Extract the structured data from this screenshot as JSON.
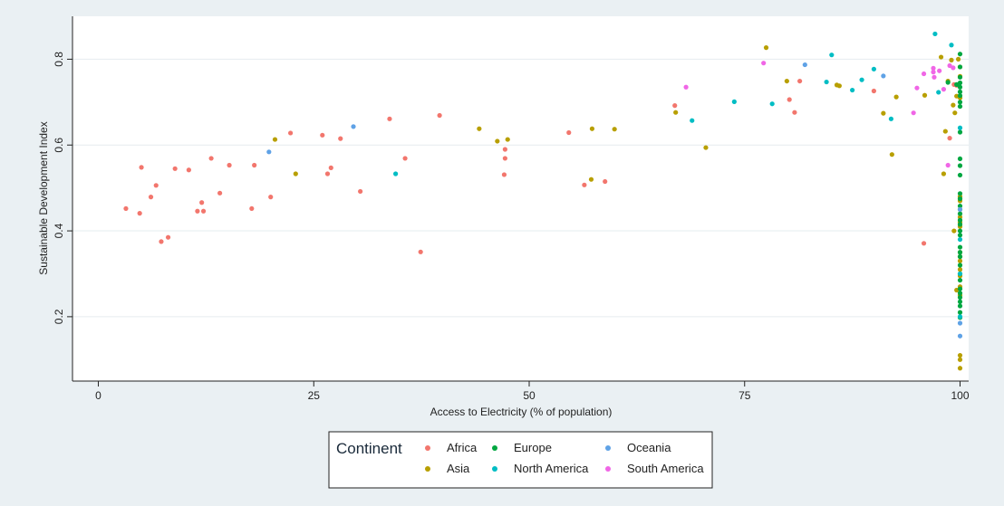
{
  "chart_data": {
    "type": "scatter",
    "xlabel": "Access to Electricity (% of population)",
    "ylabel": "Sustainable Development Index",
    "xlim": [
      -3,
      101
    ],
    "ylim": [
      0.05,
      0.9
    ],
    "xticks": [
      "0",
      "25",
      "50",
      "75",
      "100"
    ],
    "xtick_values": [
      0,
      25,
      50,
      75,
      100
    ],
    "yticks": [
      "0.2",
      "0.4",
      "0.6",
      "0.8"
    ],
    "ytick_values": [
      0.2,
      0.4,
      0.6,
      0.8
    ],
    "grid": true,
    "legend": {
      "title": "Continent",
      "placement": "bottom"
    },
    "series": [
      {
        "name": "Africa",
        "color": "#f2766d",
        "points": [
          [
            3.2,
            0.452
          ],
          [
            4.8,
            0.441
          ],
          [
            5.0,
            0.548
          ],
          [
            6.1,
            0.479
          ],
          [
            6.7,
            0.506
          ],
          [
            7.3,
            0.375
          ],
          [
            8.1,
            0.385
          ],
          [
            8.9,
            0.545
          ],
          [
            10.5,
            0.542
          ],
          [
            11.5,
            0.446
          ],
          [
            12.0,
            0.466
          ],
          [
            12.2,
            0.446
          ],
          [
            13.1,
            0.569
          ],
          [
            14.1,
            0.488
          ],
          [
            15.2,
            0.553
          ],
          [
            17.8,
            0.452
          ],
          [
            18.1,
            0.553
          ],
          [
            20.0,
            0.479
          ],
          [
            22.3,
            0.628
          ],
          [
            26.0,
            0.623
          ],
          [
            26.6,
            0.533
          ],
          [
            27.0,
            0.547
          ],
          [
            28.1,
            0.615
          ],
          [
            30.4,
            0.492
          ],
          [
            33.8,
            0.661
          ],
          [
            35.6,
            0.569
          ],
          [
            37.4,
            0.351
          ],
          [
            39.6,
            0.669
          ],
          [
            47.2,
            0.59
          ],
          [
            47.2,
            0.569
          ],
          [
            47.1,
            0.531
          ],
          [
            54.6,
            0.629
          ],
          [
            56.4,
            0.507
          ],
          [
            58.8,
            0.515
          ],
          [
            66.9,
            0.692
          ],
          [
            80.2,
            0.706
          ],
          [
            80.8,
            0.676
          ],
          [
            81.4,
            0.749
          ],
          [
            90.0,
            0.726
          ],
          [
            95.8,
            0.371
          ],
          [
            98.8,
            0.616
          ],
          [
            99.3,
            0.741
          ],
          [
            99.6,
            0.739
          ]
        ]
      },
      {
        "name": "Asia",
        "color": "#b89f00",
        "points": [
          [
            20.5,
            0.613
          ],
          [
            22.9,
            0.533
          ],
          [
            44.2,
            0.638
          ],
          [
            46.3,
            0.609
          ],
          [
            47.5,
            0.613
          ],
          [
            57.2,
            0.52
          ],
          [
            57.3,
            0.638
          ],
          [
            59.9,
            0.637
          ],
          [
            67.0,
            0.676
          ],
          [
            70.5,
            0.594
          ],
          [
            77.5,
            0.827
          ],
          [
            79.9,
            0.749
          ],
          [
            86.0,
            0.738
          ],
          [
            85.7,
            0.74
          ],
          [
            91.1,
            0.674
          ],
          [
            92.1,
            0.578
          ],
          [
            92.6,
            0.712
          ],
          [
            95.9,
            0.716
          ],
          [
            97.8,
            0.805
          ],
          [
            98.1,
            0.533
          ],
          [
            98.3,
            0.632
          ],
          [
            98.6,
            0.749
          ],
          [
            99.0,
            0.798
          ],
          [
            99.2,
            0.693
          ],
          [
            99.3,
            0.4
          ],
          [
            99.4,
            0.675
          ],
          [
            99.6,
            0.714
          ],
          [
            99.6,
            0.262
          ],
          [
            99.8,
            0.8
          ],
          [
            100,
            0.48
          ],
          [
            100,
            0.47
          ],
          [
            100,
            0.45
          ],
          [
            100,
            0.432
          ],
          [
            100,
            0.42
          ],
          [
            100,
            0.41
          ],
          [
            100,
            0.35
          ],
          [
            100,
            0.34
          ],
          [
            100,
            0.33
          ],
          [
            100,
            0.31
          ],
          [
            100,
            0.295
          ],
          [
            100,
            0.27
          ],
          [
            100,
            0.25
          ],
          [
            100,
            0.11
          ],
          [
            100,
            0.1
          ],
          [
            100,
            0.08
          ],
          [
            100,
            0.71
          ],
          [
            100,
            0.76
          ],
          [
            100,
            0.782
          ]
        ]
      },
      {
        "name": "Europe",
        "color": "#00a740",
        "points": [
          [
            98.6,
            0.746
          ],
          [
            99.6,
            0.741
          ],
          [
            100,
            0.812
          ],
          [
            100,
            0.782
          ],
          [
            100,
            0.758
          ],
          [
            100,
            0.745
          ],
          [
            100,
            0.735
          ],
          [
            100,
            0.724
          ],
          [
            100,
            0.715
          ],
          [
            100,
            0.7
          ],
          [
            100,
            0.69
          ],
          [
            100,
            0.63
          ],
          [
            100,
            0.568
          ],
          [
            100,
            0.552
          ],
          [
            100,
            0.53
          ],
          [
            100,
            0.487
          ],
          [
            100,
            0.475
          ],
          [
            100,
            0.458
          ],
          [
            100,
            0.44
          ],
          [
            100,
            0.425
          ],
          [
            100,
            0.415
          ],
          [
            100,
            0.4
          ],
          [
            100,
            0.39
          ],
          [
            100,
            0.362
          ],
          [
            100,
            0.35
          ],
          [
            100,
            0.34
          ],
          [
            100,
            0.32
          ],
          [
            100,
            0.3
          ],
          [
            100,
            0.285
          ],
          [
            100,
            0.265
          ],
          [
            100,
            0.255
          ],
          [
            100,
            0.245
          ],
          [
            100,
            0.235
          ],
          [
            100,
            0.225
          ],
          [
            100,
            0.21
          ],
          [
            100,
            0.198
          ]
        ]
      },
      {
        "name": "North America",
        "color": "#00bdc4",
        "points": [
          [
            34.5,
            0.533
          ],
          [
            68.9,
            0.657
          ],
          [
            73.8,
            0.701
          ],
          [
            78.2,
            0.696
          ],
          [
            84.5,
            0.747
          ],
          [
            85.1,
            0.81
          ],
          [
            87.5,
            0.728
          ],
          [
            88.6,
            0.752
          ],
          [
            90.0,
            0.777
          ],
          [
            92.0,
            0.661
          ],
          [
            97.1,
            0.859
          ],
          [
            97.5,
            0.723
          ],
          [
            99.0,
            0.833
          ],
          [
            100,
            0.64
          ],
          [
            100,
            0.38
          ],
          [
            100,
            0.3
          ],
          [
            100,
            0.2
          ]
        ]
      },
      {
        "name": "Oceania",
        "color": "#5fa2e6",
        "points": [
          [
            19.8,
            0.584
          ],
          [
            29.6,
            0.643
          ],
          [
            82.0,
            0.787
          ],
          [
            91.1,
            0.761
          ],
          [
            100,
            0.45
          ],
          [
            100,
            0.185
          ],
          [
            100,
            0.155
          ]
        ]
      },
      {
        "name": "South America",
        "color": "#f066e6",
        "points": [
          [
            68.2,
            0.735
          ],
          [
            77.2,
            0.791
          ],
          [
            94.6,
            0.675
          ],
          [
            95.0,
            0.733
          ],
          [
            95.8,
            0.766
          ],
          [
            96.9,
            0.779
          ],
          [
            96.9,
            0.77
          ],
          [
            97.0,
            0.758
          ],
          [
            97.6,
            0.773
          ],
          [
            98.1,
            0.73
          ],
          [
            98.6,
            0.553
          ],
          [
            98.8,
            0.785
          ],
          [
            99.2,
            0.78
          ]
        ]
      }
    ]
  }
}
